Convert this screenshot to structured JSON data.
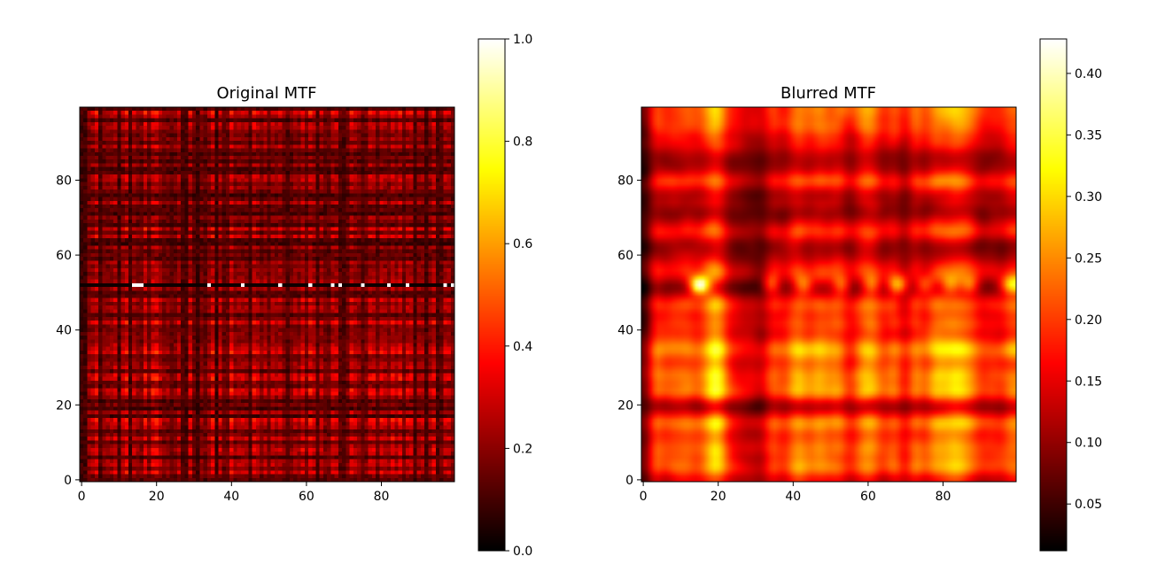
{
  "chart_data": [
    {
      "type": "heatmap",
      "title": "Original MTF",
      "colormap": "hot",
      "grid": false,
      "origin": "lower",
      "shape": [
        100,
        100
      ],
      "xlim": [
        0,
        99
      ],
      "ylim": [
        0,
        99
      ],
      "x_ticks": [
        0,
        20,
        40,
        60,
        80
      ],
      "y_ticks": [
        0,
        20,
        40,
        60,
        80
      ],
      "colorbar": {
        "placement": "right",
        "range": [
          0.0,
          1.0
        ],
        "ticks": [
          0.0,
          0.2,
          0.4,
          0.6,
          0.8,
          1.0
        ],
        "tick_labels": [
          "0.0",
          "0.2",
          "0.4",
          "0.6",
          "0.8",
          "1.0"
        ]
      },
      "value_summary": {
        "typical_range": [
          0.0,
          0.4
        ],
        "bright_row": 52,
        "bright_row_peak_columns": [
          14,
          15,
          16,
          34,
          43,
          53,
          61,
          67,
          69,
          75,
          82,
          87,
          97,
          99
        ],
        "bright_row_peak_value": 1.0
      }
    },
    {
      "type": "heatmap",
      "title": "Blurred MTF",
      "colormap": "hot",
      "grid": false,
      "origin": "lower",
      "shape": [
        100,
        100
      ],
      "xlim": [
        0,
        99
      ],
      "ylim": [
        0,
        99
      ],
      "x_ticks": [
        0,
        20,
        40,
        60,
        80
      ],
      "y_ticks": [
        0,
        20,
        40,
        60,
        80
      ],
      "colorbar": {
        "placement": "right",
        "range": [
          0.012,
          0.428
        ],
        "ticks": [
          0.05,
          0.1,
          0.15,
          0.2,
          0.25,
          0.3,
          0.35,
          0.4
        ],
        "tick_labels": [
          "0.05",
          "0.10",
          "0.15",
          "0.20",
          "0.25",
          "0.30",
          "0.35",
          "0.40"
        ]
      },
      "value_summary": {
        "typical_range": [
          0.05,
          0.25
        ],
        "bright_row": 52,
        "peak_at": [
          15,
          52
        ],
        "peak_value": 0.42
      }
    }
  ]
}
